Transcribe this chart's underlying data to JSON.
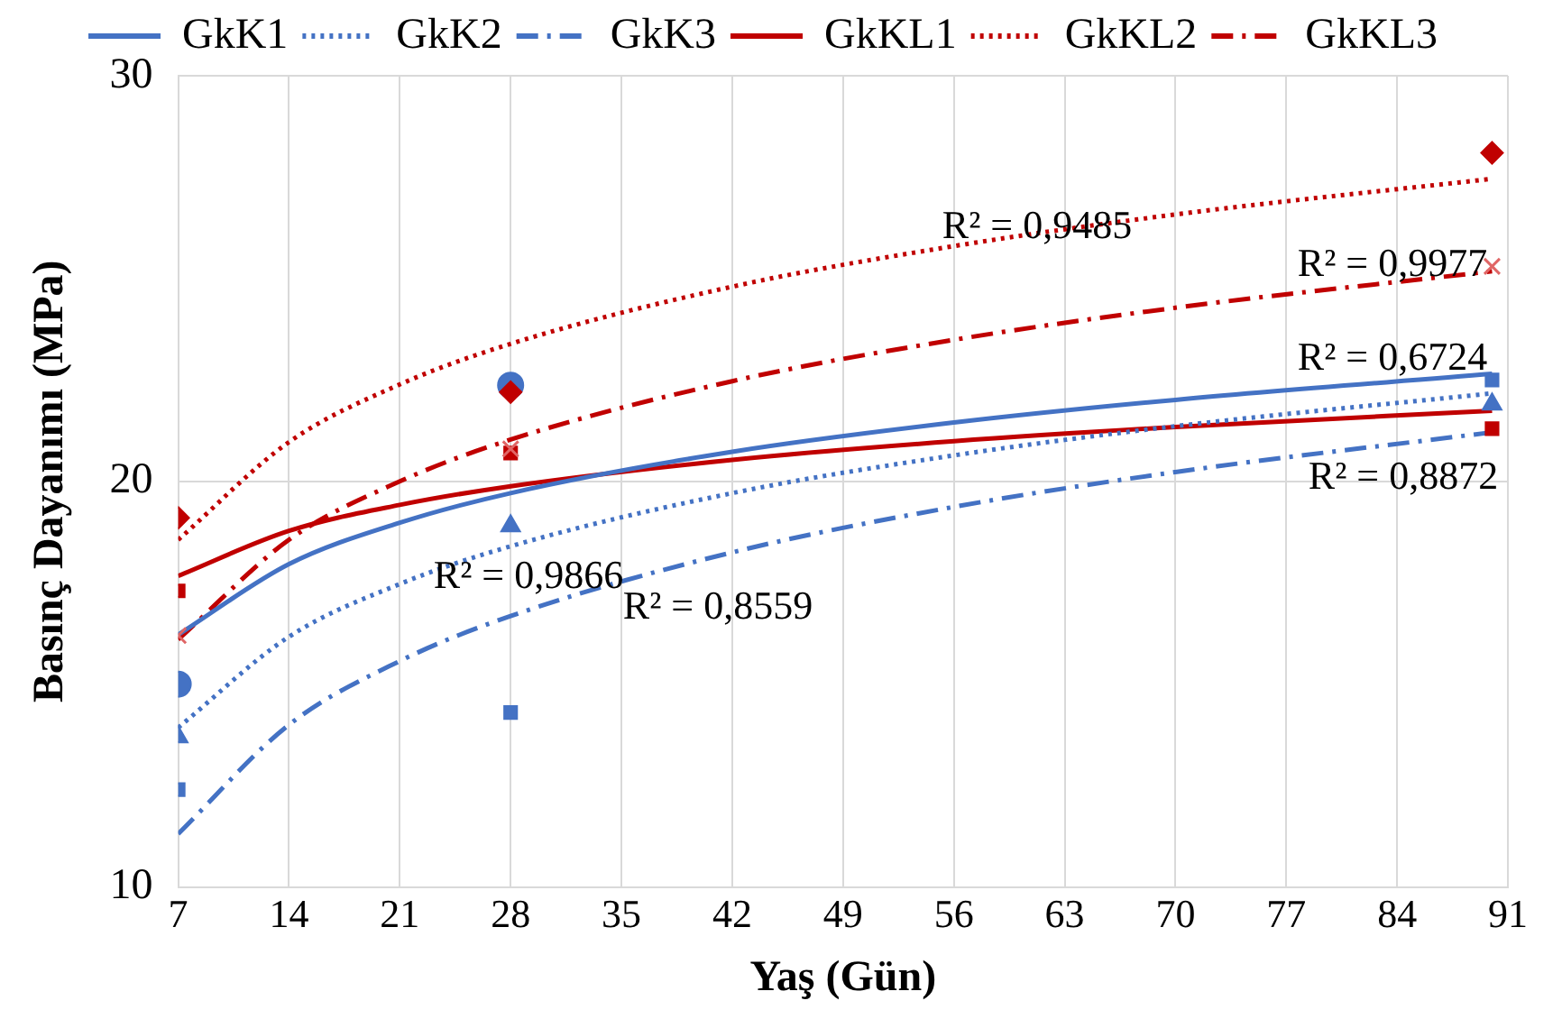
{
  "chart_data": {
    "type": "scatter",
    "ylabel": "Basınç Dayanımı (MPa)",
    "xlabel": "Yaş (Gün)",
    "xlim": [
      7,
      91
    ],
    "xticks": [
      7,
      14,
      21,
      28,
      35,
      42,
      49,
      56,
      63,
      70,
      77,
      84,
      91
    ],
    "ylim": [
      10,
      30
    ],
    "yticks": [
      10,
      20,
      30
    ],
    "grid": true,
    "legend": "top",
    "series": [
      {
        "name": "GkK1",
        "type": "line",
        "color": "#4472c4",
        "line_style": "solid",
        "marker": "none",
        "x": [
          7,
          14,
          21,
          28,
          42,
          56,
          70,
          90
        ],
        "values": [
          16.22,
          17.96,
          18.98,
          19.71,
          20.73,
          21.45,
          22.01,
          22.65
        ]
      },
      {
        "name": "GkK2",
        "type": "line",
        "color": "#4472c4",
        "line_style": "dotted",
        "marker": "none",
        "x": [
          7,
          14,
          21,
          28,
          42,
          56,
          70,
          90
        ],
        "values": [
          13.93,
          16.17,
          17.47,
          18.4,
          19.71,
          20.64,
          21.36,
          22.17
        ]
      },
      {
        "name": "GkK3",
        "type": "line",
        "color": "#4472c4",
        "line_style": "dashdot",
        "marker": "none",
        "x": [
          7,
          14,
          21,
          28,
          42,
          56,
          70,
          90
        ],
        "values": [
          11.31,
          14.0,
          15.57,
          16.68,
          18.25,
          19.37,
          20.23,
          21.21
        ]
      },
      {
        "name": "GkKL1",
        "type": "line",
        "color": "#c00000",
        "line_style": "solid",
        "marker": "none",
        "x": [
          7,
          14,
          21,
          28,
          42,
          56,
          70,
          90
        ],
        "values": [
          17.67,
          18.78,
          19.42,
          19.88,
          20.53,
          20.99,
          21.34,
          21.74
        ]
      },
      {
        "name": "GkKL2",
        "type": "line",
        "color": "#c00000",
        "line_style": "dotted",
        "marker": "none",
        "x": [
          7,
          14,
          21,
          28,
          42,
          56,
          70,
          90
        ],
        "values": [
          18.56,
          20.97,
          22.39,
          23.39,
          24.8,
          25.8,
          26.58,
          27.46
        ]
      },
      {
        "name": "GkKL3",
        "type": "line",
        "color": "#c00000",
        "line_style": "dashdot",
        "marker": "none",
        "x": [
          7,
          14,
          21,
          28,
          42,
          56,
          70,
          90
        ],
        "values": [
          16.1,
          18.56,
          20.0,
          21.03,
          22.47,
          23.49,
          24.28,
          25.18
        ]
      },
      {
        "type": "scatter",
        "color": "#4472c4",
        "marker": "circle",
        "x": [
          7,
          28
        ],
        "values": [
          15.0,
          22.37
        ]
      },
      {
        "type": "scatter",
        "color": "#4472c4",
        "marker": "triangle",
        "x": [
          7,
          28,
          90
        ],
        "values": [
          13.7,
          18.9,
          21.9
        ]
      },
      {
        "type": "scatter",
        "color": "#4472c4",
        "marker": "square",
        "x": [
          7,
          28,
          90
        ],
        "values": [
          12.4,
          14.3,
          22.5
        ]
      },
      {
        "type": "scatter",
        "color": "#c00000",
        "marker": "square",
        "x": [
          7,
          28,
          90
        ],
        "values": [
          17.3,
          20.7,
          21.3
        ]
      },
      {
        "type": "scatter",
        "color": "#c00000",
        "marker": "diamond",
        "x": [
          7,
          28,
          90
        ],
        "values": [
          19.1,
          22.2,
          28.1
        ]
      },
      {
        "type": "scatter",
        "color": "#e06666",
        "marker": "cross",
        "x": [
          7,
          28,
          90
        ],
        "values": [
          16.2,
          20.8,
          25.3
        ]
      }
    ],
    "annotations": [
      "R² = 0,9485",
      "R² = 0,9977",
      "R² = 0,6724",
      "R² = 0,8872",
      "R² = 0,9866",
      "R² = 0,8559"
    ]
  }
}
